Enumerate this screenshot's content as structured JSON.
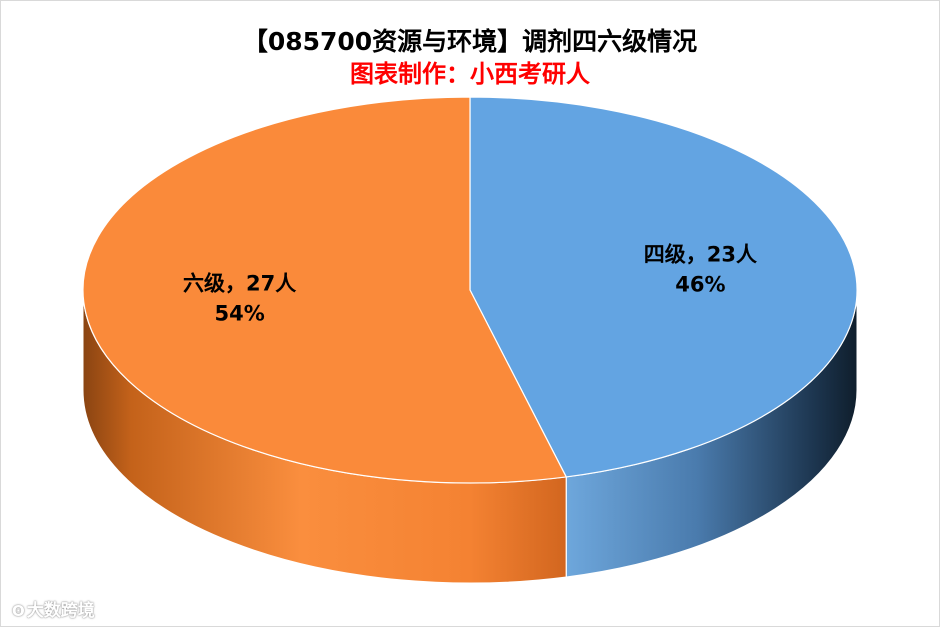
{
  "chart_data": {
    "type": "pie",
    "title": "【085700资源与环境】调剂四六级情况",
    "subtitle": "图表制作：小西考研人",
    "categories": [
      "四级",
      "六级"
    ],
    "values": [
      23,
      27
    ],
    "unit": "人",
    "percent_labels": [
      "46%",
      "54%"
    ],
    "data_labels": [
      "四级，23人",
      "六级，27人"
    ],
    "colors": [
      "#63a4e2",
      "#fa8a3a"
    ],
    "side_colors_dark": [
      "#0f1e2c",
      "#8a4412"
    ],
    "style": "3d-pie",
    "start": "top, clockwise",
    "legend": "none"
  },
  "watermark": {
    "icon": "weibo-icon",
    "text": "大数跨境"
  }
}
